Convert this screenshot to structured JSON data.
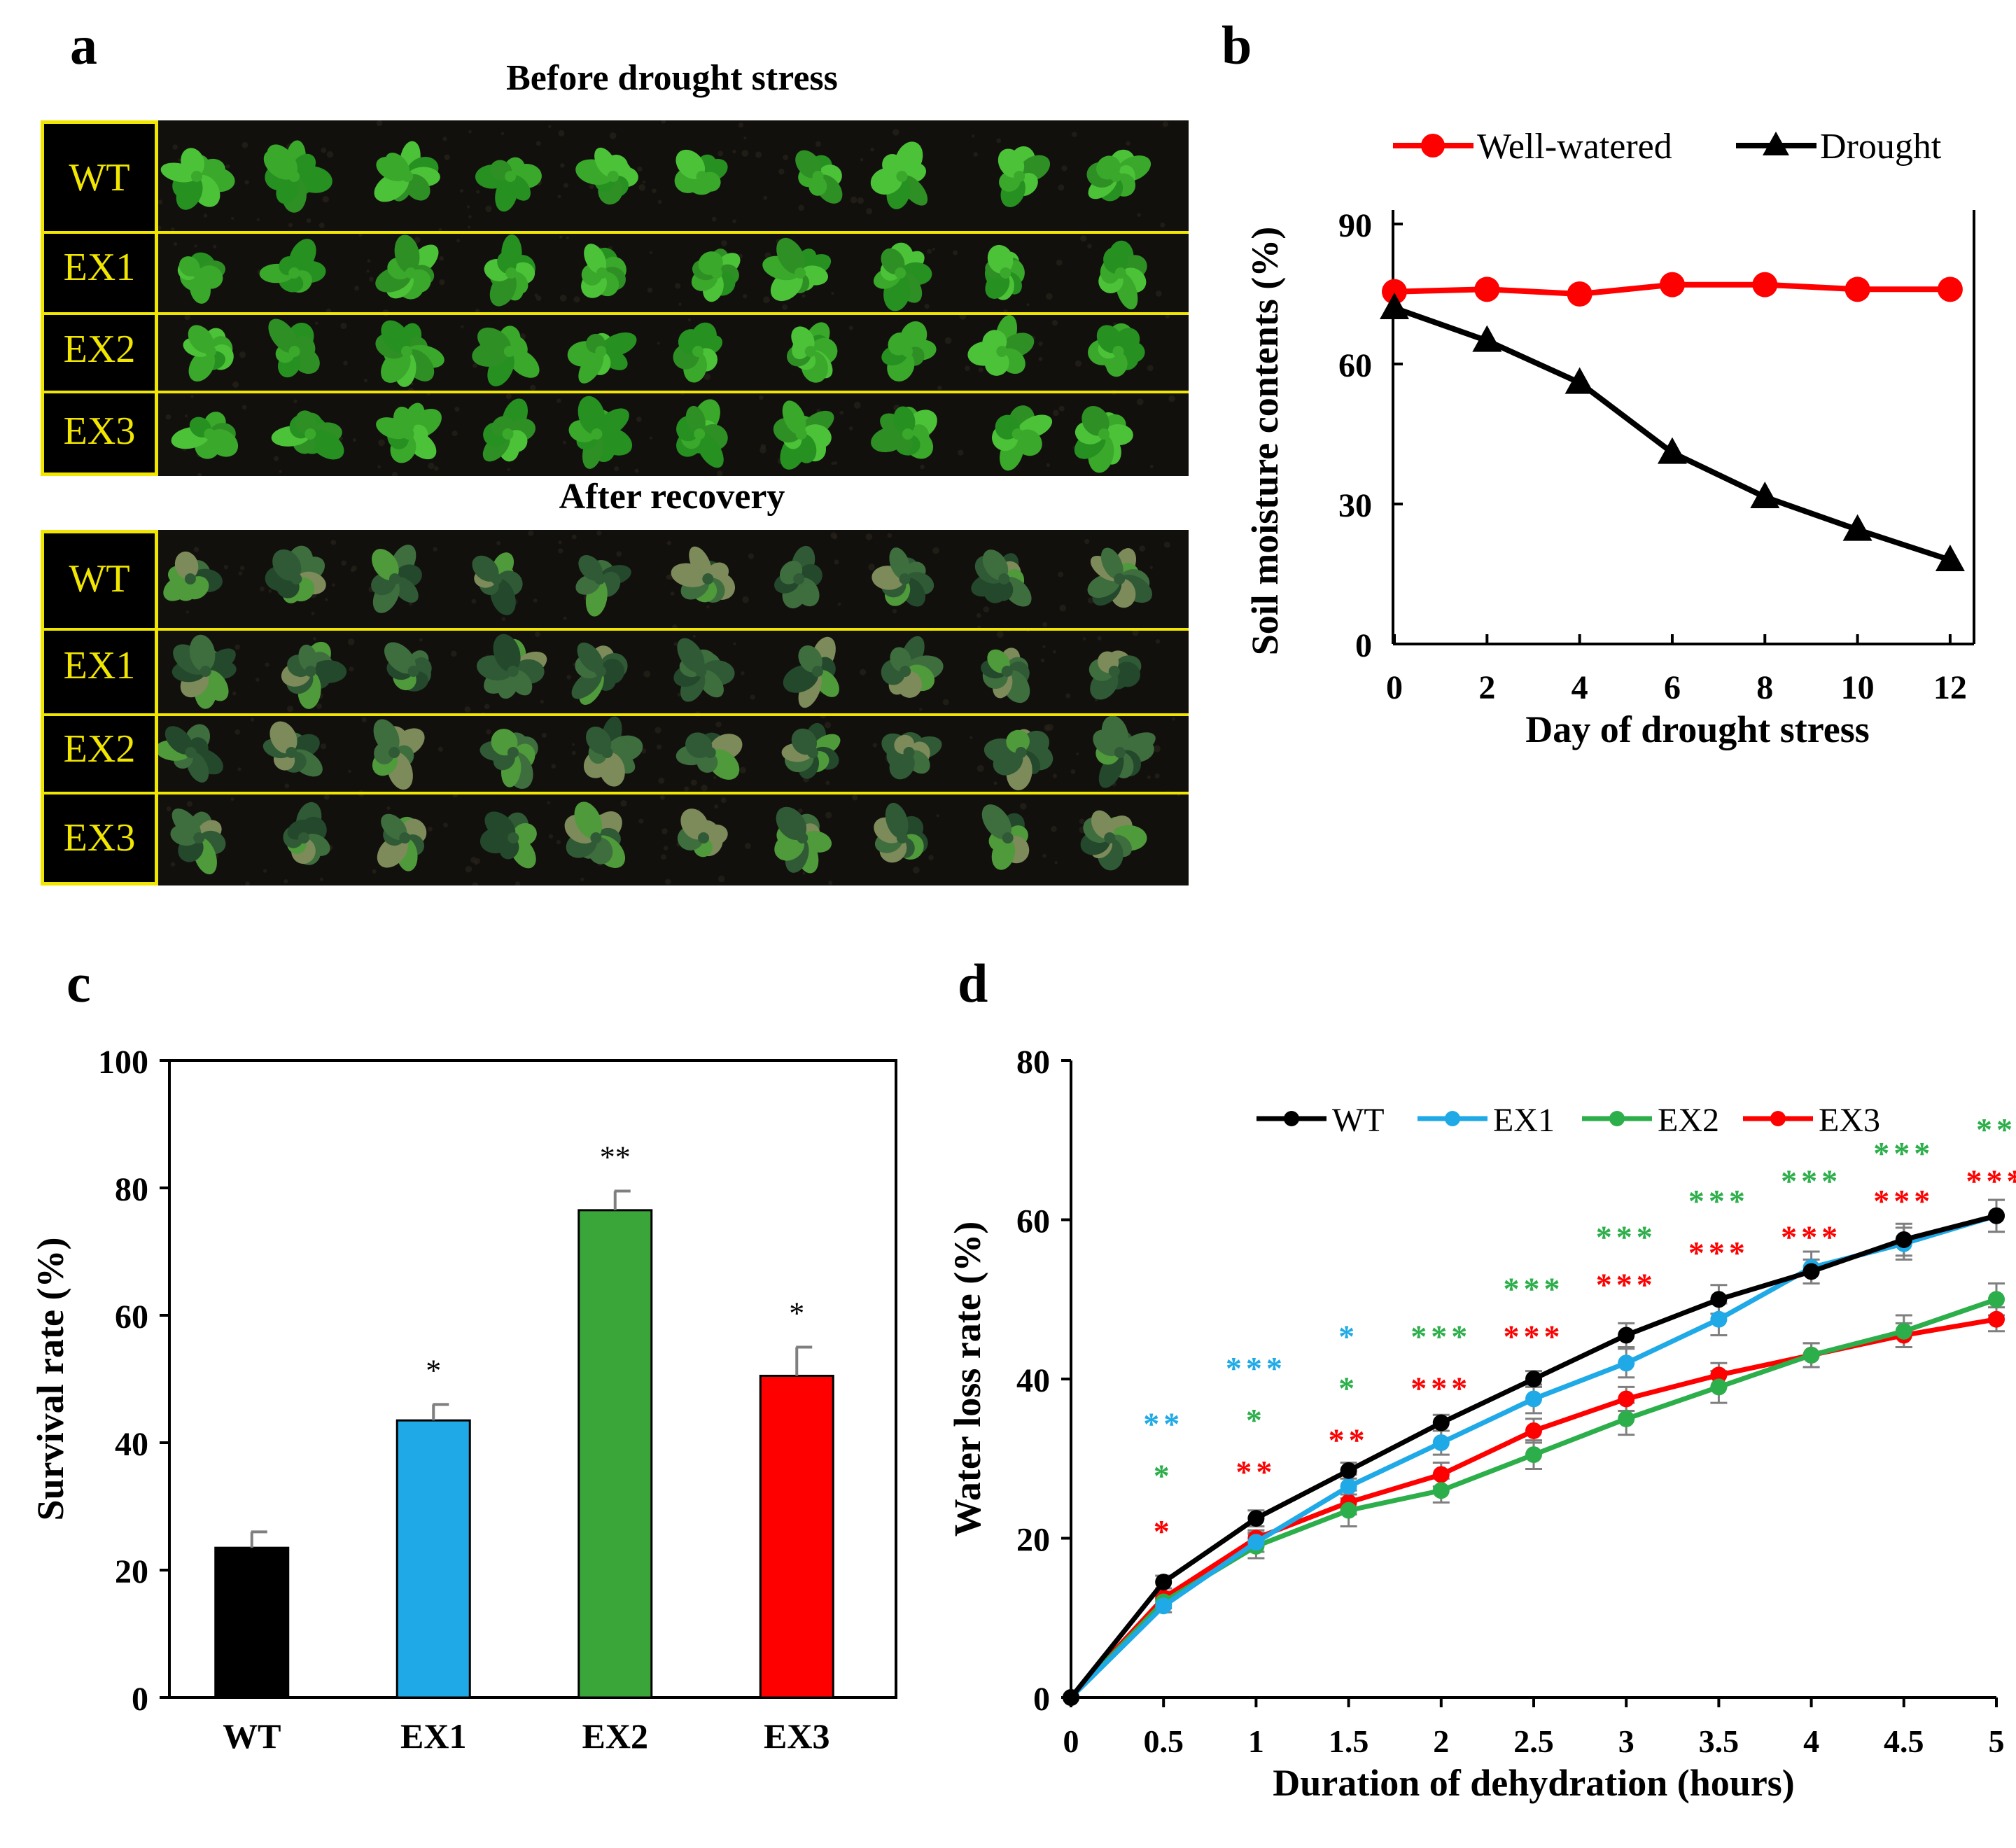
{
  "panel_letters": {
    "a": "a",
    "b": "b",
    "c": "c",
    "d": "d"
  },
  "photos": {
    "before_title": "Before drought stress",
    "after_title": "After recovery",
    "row_labels": [
      "WT",
      "EX1",
      "EX2",
      "EX3"
    ],
    "colors": {
      "label_border": "#f1e600",
      "label_text": "#f1e600",
      "leaf_healthy": "#3aa82a",
      "leaf_recovered": "#2f5a35"
    }
  },
  "chart_data": [
    {
      "id": "b",
      "type": "line",
      "xlabel": "Day of drought stress",
      "ylabel": "Soil moisture contents (%)",
      "x": [
        0,
        2,
        4,
        6,
        8,
        10,
        12
      ],
      "xticks": [
        "0",
        "2",
        "4",
        "6",
        "8",
        "10",
        "12"
      ],
      "yticks": [
        "0",
        "30",
        "60",
        "90"
      ],
      "ylim": [
        0,
        90
      ],
      "legend_position": "top",
      "series": [
        {
          "name": "Well-watered",
          "color": "#ff0000",
          "marker": "circle",
          "values": [
            75.5,
            76,
            75,
            77,
            77,
            76,
            76
          ]
        },
        {
          "name": "Drought",
          "color": "#000000",
          "marker": "triangle",
          "values": [
            72,
            65,
            56,
            41,
            31.5,
            24.5,
            18
          ]
        }
      ]
    },
    {
      "id": "c",
      "type": "bar",
      "ylabel": "Survival rate (%)",
      "categories": [
        "WT",
        "EX1",
        "EX2",
        "EX3"
      ],
      "values": [
        23.5,
        43.5,
        76.5,
        50.5
      ],
      "errors": [
        2.5,
        2.5,
        3,
        4.5
      ],
      "significance": [
        "",
        "*",
        "**",
        "*"
      ],
      "colors": [
        "#000000",
        "#1fa9e6",
        "#3aa63a",
        "#ff0000"
      ],
      "yticks": [
        "0",
        "20",
        "40",
        "60",
        "80",
        "100"
      ],
      "ylim": [
        0,
        100
      ]
    },
    {
      "id": "d",
      "type": "line",
      "xlabel": "Duration of dehydration (hours)",
      "ylabel": "Water loss rate (%)",
      "x": [
        0,
        0.5,
        1,
        1.5,
        2,
        2.5,
        3,
        3.5,
        4,
        4.5,
        5
      ],
      "xticks": [
        "0",
        "0.5",
        "1",
        "1.5",
        "2",
        "2.5",
        "3",
        "3.5",
        "4",
        "4.5",
        "5"
      ],
      "yticks": [
        "0",
        "20",
        "40",
        "60",
        "80"
      ],
      "ylim": [
        0,
        80
      ],
      "legend_position": "top-right",
      "series": [
        {
          "name": "WT",
          "color": "#000000",
          "values": [
            0,
            14.5,
            22.5,
            28.5,
            34.5,
            40,
            45.5,
            50,
            53.5,
            57.5,
            60.5
          ],
          "errors": [
            0,
            0.8,
            1,
            1,
            1,
            1,
            1.5,
            1.8,
            1.5,
            2,
            2
          ]
        },
        {
          "name": "EX1",
          "color": "#1fa9e6",
          "values": [
            0,
            11.5,
            19.5,
            26.5,
            32,
            37.5,
            42,
            47.5,
            54,
            57,
            60.5
          ],
          "errors": [
            0,
            0.8,
            1.2,
            1.5,
            1.5,
            1.8,
            1.8,
            2,
            2,
            2,
            2
          ]
        },
        {
          "name": "EX2",
          "color": "#2cae4a",
          "values": [
            0,
            12,
            19,
            23.5,
            26,
            30.5,
            35,
            39,
            43,
            46,
            50
          ],
          "errors": [
            0,
            0.8,
            1.5,
            2,
            1.5,
            1.8,
            2,
            2,
            1.5,
            2,
            2
          ]
        },
        {
          "name": "EX3",
          "color": "#ff0000",
          "values": [
            0,
            12.5,
            20,
            24.5,
            28,
            33.5,
            37.5,
            40.5,
            43,
            45.5,
            47.5
          ],
          "errors": [
            0,
            0.8,
            1,
            1.5,
            1.5,
            1.5,
            1.5,
            1.5,
            1.5,
            1.5,
            1.5
          ]
        }
      ],
      "significance": [
        {
          "x": 0.5,
          "y": 33,
          "text": "**",
          "color": "#1fa9e6"
        },
        {
          "x": 0.5,
          "y": 26.5,
          "text": "*",
          "color": "#2cae4a"
        },
        {
          "x": 0.5,
          "y": 19.5,
          "text": "*",
          "color": "#ff0000"
        },
        {
          "x": 1,
          "y": 40,
          "text": "***",
          "color": "#1fa9e6"
        },
        {
          "x": 1,
          "y": 33.5,
          "text": "*",
          "color": "#2cae4a"
        },
        {
          "x": 1,
          "y": 27,
          "text": "**",
          "color": "#ff0000"
        },
        {
          "x": 1.5,
          "y": 44,
          "text": "*",
          "color": "#1fa9e6"
        },
        {
          "x": 1.5,
          "y": 37.5,
          "text": "*",
          "color": "#2cae4a"
        },
        {
          "x": 1.5,
          "y": 31,
          "text": "**",
          "color": "#ff0000"
        },
        {
          "x": 2,
          "y": 44,
          "text": "***",
          "color": "#2cae4a"
        },
        {
          "x": 2,
          "y": 37.5,
          "text": "***",
          "color": "#ff0000"
        },
        {
          "x": 2.5,
          "y": 50,
          "text": "***",
          "color": "#2cae4a"
        },
        {
          "x": 2.5,
          "y": 44,
          "text": "***",
          "color": "#ff0000"
        },
        {
          "x": 3,
          "y": 56.5,
          "text": "***",
          "color": "#2cae4a"
        },
        {
          "x": 3,
          "y": 50.5,
          "text": "***",
          "color": "#ff0000"
        },
        {
          "x": 3.5,
          "y": 61,
          "text": "***",
          "color": "#2cae4a"
        },
        {
          "x": 3.5,
          "y": 54.5,
          "text": "***",
          "color": "#ff0000"
        },
        {
          "x": 4,
          "y": 63.5,
          "text": "***",
          "color": "#2cae4a"
        },
        {
          "x": 4,
          "y": 56.5,
          "text": "***",
          "color": "#ff0000"
        },
        {
          "x": 4.5,
          "y": 67,
          "text": "***",
          "color": "#2cae4a"
        },
        {
          "x": 4.5,
          "y": 61,
          "text": "***",
          "color": "#ff0000"
        },
        {
          "x": 5,
          "y": 70,
          "text": "**",
          "color": "#2cae4a"
        },
        {
          "x": 5,
          "y": 63.5,
          "text": "***",
          "color": "#ff0000"
        }
      ]
    }
  ]
}
